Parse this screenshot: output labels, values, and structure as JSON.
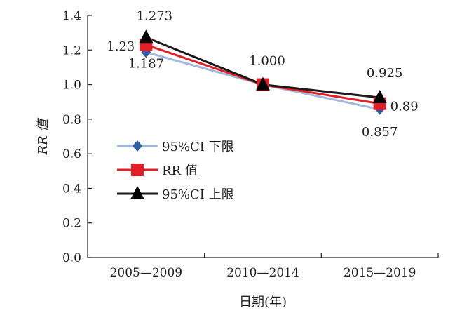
{
  "chart_data": {
    "type": "line",
    "categories": [
      "2005—2009",
      "2010—2014",
      "2015—2019"
    ],
    "series": [
      {
        "name": "95%CI 下限",
        "values": [
          1.187,
          1.0,
          0.857
        ],
        "line_color": "#9fb8dc",
        "marker": "diamond",
        "marker_color": "#2e5fa6"
      },
      {
        "name": "RR 值",
        "values": [
          1.23,
          1.0,
          0.89
        ],
        "line_color": "#e31e24",
        "marker": "square",
        "marker_color": "#e31e24"
      },
      {
        "name": "95%CI 上限",
        "values": [
          1.273,
          1.0,
          0.925
        ],
        "line_color": "#1a1a1a",
        "marker": "triangle",
        "marker_color": "#000000"
      }
    ],
    "data_labels": [
      {
        "series": 0,
        "index": 0,
        "text": "1.187"
      },
      {
        "series": 1,
        "index": 0,
        "text": "1.23"
      },
      {
        "series": 2,
        "index": 0,
        "text": "1.273"
      },
      {
        "series": 2,
        "index": 1,
        "text": "1.000"
      },
      {
        "series": 2,
        "index": 2,
        "text": "0.925"
      },
      {
        "series": 1,
        "index": 2,
        "text": "0.89"
      },
      {
        "series": 0,
        "index": 2,
        "text": "0.857"
      }
    ],
    "xlabel": "日期(年)",
    "ylabel": "RR 值",
    "ylim": [
      0,
      1.4
    ],
    "yticks": [
      "0.0",
      "0.2",
      "0.4",
      "0.6",
      "0.8",
      "1.0",
      "1.2",
      "1.4"
    ],
    "grid": false,
    "legend_position": "left"
  }
}
